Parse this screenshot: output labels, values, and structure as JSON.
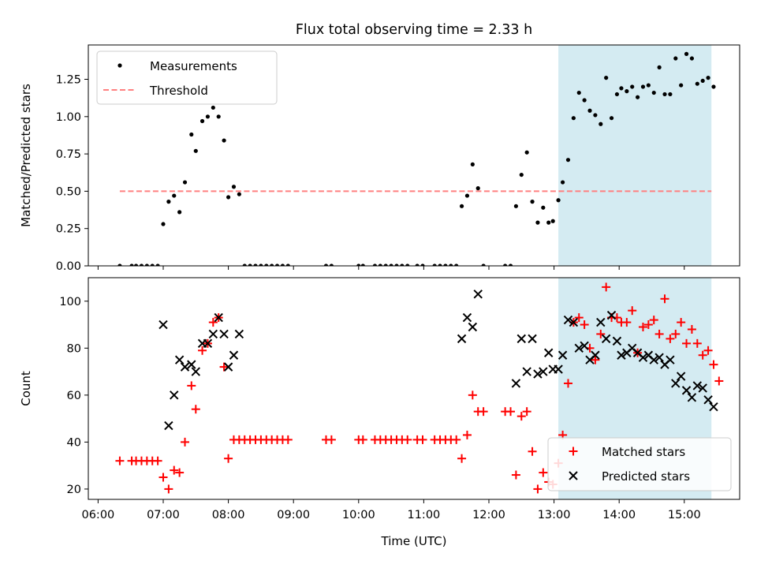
{
  "title": "Flux total observing time = 2.33 h",
  "chart_data": [
    {
      "type": "scatter",
      "ylabel": "Matched/Predicted stars",
      "xlim": [
        "05:51",
        "15:51"
      ],
      "ylim": [
        0,
        1.48
      ],
      "yticks": [
        "0.00",
        "0.25",
        "0.50",
        "0.75",
        "1.00",
        "1.25"
      ],
      "shaded_span": [
        "13:04",
        "15:25"
      ],
      "shaded_color": "#add8e6",
      "legend_position": "upper left",
      "threshold": {
        "name": "Threshold",
        "value": 0.5,
        "x_range": [
          "06:20",
          "15:25"
        ],
        "color": "#ff8080"
      },
      "series": [
        {
          "name": "Measurements",
          "marker": "dot",
          "color": "#000000",
          "points": [
            [
              "06:20",
              0
            ],
            [
              "06:31",
              0
            ],
            [
              "06:35",
              0
            ],
            [
              "06:40",
              0
            ],
            [
              "06:45",
              0
            ],
            [
              "06:50",
              0
            ],
            [
              "06:55",
              0
            ],
            [
              "07:00",
              0.28
            ],
            [
              "07:05",
              0.43
            ],
            [
              "07:10",
              0.47
            ],
            [
              "07:15",
              0.36
            ],
            [
              "07:20",
              0.56
            ],
            [
              "07:26",
              0.88
            ],
            [
              "07:30",
              0.77
            ],
            [
              "07:36",
              0.97
            ],
            [
              "07:41",
              1.0
            ],
            [
              "07:46",
              1.06
            ],
            [
              "07:51",
              1.0
            ],
            [
              "07:56",
              0.84
            ],
            [
              "08:00",
              0.46
            ],
            [
              "08:05",
              0.53
            ],
            [
              "08:10",
              0.48
            ],
            [
              "08:15",
              0
            ],
            [
              "08:20",
              0
            ],
            [
              "08:25",
              0
            ],
            [
              "08:30",
              0
            ],
            [
              "08:35",
              0
            ],
            [
              "08:40",
              0
            ],
            [
              "08:45",
              0
            ],
            [
              "08:50",
              0
            ],
            [
              "08:55",
              0
            ],
            [
              "09:30",
              0
            ],
            [
              "09:35",
              0
            ],
            [
              "10:00",
              0
            ],
            [
              "10:04",
              0
            ],
            [
              "10:15",
              0
            ],
            [
              "10:20",
              0
            ],
            [
              "10:25",
              0
            ],
            [
              "10:30",
              0
            ],
            [
              "10:35",
              0
            ],
            [
              "10:40",
              0
            ],
            [
              "10:45",
              0
            ],
            [
              "10:54",
              0
            ],
            [
              "10:59",
              0
            ],
            [
              "11:10",
              0
            ],
            [
              "11:15",
              0
            ],
            [
              "11:20",
              0
            ],
            [
              "11:25",
              0
            ],
            [
              "11:30",
              0
            ],
            [
              "11:35",
              0.4
            ],
            [
              "11:40",
              0.47
            ],
            [
              "11:45",
              0.68
            ],
            [
              "11:50",
              0.52
            ],
            [
              "11:55",
              0
            ],
            [
              "12:15",
              0
            ],
            [
              "12:20",
              0
            ],
            [
              "12:25",
              0.4
            ],
            [
              "12:30",
              0.61
            ],
            [
              "12:35",
              0.76
            ],
            [
              "12:40",
              0.43
            ],
            [
              "12:45",
              0.29
            ],
            [
              "12:50",
              0.39
            ],
            [
              "12:55",
              0.29
            ],
            [
              "12:59",
              0.3
            ],
            [
              "13:04",
              0.44
            ],
            [
              "13:08",
              0.56
            ],
            [
              "13:13",
              0.71
            ],
            [
              "13:18",
              0.99
            ],
            [
              "13:23",
              1.16
            ],
            [
              "13:28",
              1.11
            ],
            [
              "13:33",
              1.04
            ],
            [
              "13:38",
              1.01
            ],
            [
              "13:43",
              0.95
            ],
            [
              "13:48",
              1.26
            ],
            [
              "13:53",
              0.99
            ],
            [
              "13:58",
              1.15
            ],
            [
              "14:02",
              1.19
            ],
            [
              "14:07",
              1.17
            ],
            [
              "14:12",
              1.2
            ],
            [
              "14:17",
              1.13
            ],
            [
              "14:22",
              1.2
            ],
            [
              "14:27",
              1.21
            ],
            [
              "14:32",
              1.16
            ],
            [
              "14:37",
              1.33
            ],
            [
              "14:42",
              1.15
            ],
            [
              "14:47",
              1.15
            ],
            [
              "14:52",
              1.39
            ],
            [
              "14:57",
              1.21
            ],
            [
              "15:02",
              1.42
            ],
            [
              "15:07",
              1.39
            ],
            [
              "15:12",
              1.22
            ],
            [
              "15:17",
              1.24
            ],
            [
              "15:22",
              1.26
            ],
            [
              "15:27",
              1.2
            ]
          ]
        }
      ]
    },
    {
      "type": "scatter",
      "xlabel": "Time (UTC)",
      "ylabel": "Count",
      "xlim": [
        "05:51",
        "15:51"
      ],
      "ylim": [
        15.6,
        110
      ],
      "xticks": [
        "06:00",
        "07:00",
        "08:00",
        "09:00",
        "10:00",
        "11:00",
        "12:00",
        "13:00",
        "14:00",
        "15:00"
      ],
      "yticks": [
        "20",
        "40",
        "60",
        "80",
        "100"
      ],
      "shaded_span": [
        "13:04",
        "15:25"
      ],
      "shaded_color": "#add8e6",
      "legend_position": "lower right",
      "series": [
        {
          "name": "Matched stars",
          "marker": "+",
          "color": "#ff0000",
          "points": [
            [
              "06:20",
              32
            ],
            [
              "06:31",
              32
            ],
            [
              "06:35",
              32
            ],
            [
              "06:40",
              32
            ],
            [
              "06:45",
              32
            ],
            [
              "06:50",
              32
            ],
            [
              "06:55",
              32
            ],
            [
              "07:00",
              25
            ],
            [
              "07:05",
              20
            ],
            [
              "07:10",
              28
            ],
            [
              "07:15",
              27
            ],
            [
              "07:20",
              40
            ],
            [
              "07:26",
              64
            ],
            [
              "07:30",
              54
            ],
            [
              "07:36",
              79
            ],
            [
              "07:41",
              82
            ],
            [
              "07:46",
              91
            ],
            [
              "07:51",
              93
            ],
            [
              "07:56",
              72
            ],
            [
              "08:00",
              33
            ],
            [
              "08:05",
              41
            ],
            [
              "08:10",
              41
            ],
            [
              "08:15",
              41
            ],
            [
              "08:20",
              41
            ],
            [
              "08:25",
              41
            ],
            [
              "08:30",
              41
            ],
            [
              "08:35",
              41
            ],
            [
              "08:40",
              41
            ],
            [
              "08:45",
              41
            ],
            [
              "08:50",
              41
            ],
            [
              "08:55",
              41
            ],
            [
              "09:30",
              41
            ],
            [
              "09:35",
              41
            ],
            [
              "10:00",
              41
            ],
            [
              "10:04",
              41
            ],
            [
              "10:15",
              41
            ],
            [
              "10:20",
              41
            ],
            [
              "10:25",
              41
            ],
            [
              "10:30",
              41
            ],
            [
              "10:35",
              41
            ],
            [
              "10:40",
              41
            ],
            [
              "10:45",
              41
            ],
            [
              "10:54",
              41
            ],
            [
              "10:59",
              41
            ],
            [
              "11:10",
              41
            ],
            [
              "11:15",
              41
            ],
            [
              "11:20",
              41
            ],
            [
              "11:25",
              41
            ],
            [
              "11:30",
              41
            ],
            [
              "11:35",
              33
            ],
            [
              "11:40",
              43
            ],
            [
              "11:45",
              60
            ],
            [
              "11:50",
              53
            ],
            [
              "11:55",
              53
            ],
            [
              "12:15",
              53
            ],
            [
              "12:20",
              53
            ],
            [
              "12:25",
              26
            ],
            [
              "12:30",
              51
            ],
            [
              "12:35",
              53
            ],
            [
              "12:40",
              36
            ],
            [
              "12:45",
              20
            ],
            [
              "12:50",
              27
            ],
            [
              "12:55",
              23
            ],
            [
              "12:59",
              22
            ],
            [
              "13:04",
              31
            ],
            [
              "13:08",
              43
            ],
            [
              "13:13",
              65
            ],
            [
              "13:18",
              91
            ],
            [
              "13:23",
              93
            ],
            [
              "13:28",
              90
            ],
            [
              "13:33",
              80
            ],
            [
              "13:38",
              75
            ],
            [
              "13:43",
              86
            ],
            [
              "13:48",
              106
            ],
            [
              "13:53",
              93
            ],
            [
              "13:58",
              93
            ],
            [
              "14:02",
              91
            ],
            [
              "14:07",
              91
            ],
            [
              "14:12",
              96
            ],
            [
              "14:17",
              78
            ],
            [
              "14:22",
              89
            ],
            [
              "14:27",
              90
            ],
            [
              "14:32",
              92
            ],
            [
              "14:37",
              86
            ],
            [
              "14:42",
              101
            ],
            [
              "14:47",
              84
            ],
            [
              "14:52",
              86
            ],
            [
              "14:57",
              91
            ],
            [
              "15:02",
              82
            ],
            [
              "15:07",
              88
            ],
            [
              "15:12",
              82
            ],
            [
              "15:17",
              77
            ],
            [
              "15:22",
              79
            ],
            [
              "15:27",
              73
            ],
            [
              "15:32",
              66
            ]
          ]
        },
        {
          "name": "Predicted stars",
          "marker": "x",
          "color": "#000000",
          "points": [
            [
              "07:00",
              90
            ],
            [
              "07:05",
              47
            ],
            [
              "07:10",
              60
            ],
            [
              "07:15",
              75
            ],
            [
              "07:20",
              72
            ],
            [
              "07:26",
              73
            ],
            [
              "07:30",
              70
            ],
            [
              "07:36",
              82
            ],
            [
              "07:41",
              82
            ],
            [
              "07:46",
              86
            ],
            [
              "07:51",
              93
            ],
            [
              "07:56",
              86
            ],
            [
              "08:00",
              72
            ],
            [
              "08:05",
              77
            ],
            [
              "08:10",
              86
            ],
            [
              "11:35",
              84
            ],
            [
              "11:40",
              93
            ],
            [
              "11:45",
              89
            ],
            [
              "11:50",
              103
            ],
            [
              "12:25",
              65
            ],
            [
              "12:30",
              84
            ],
            [
              "12:35",
              70
            ],
            [
              "12:40",
              84
            ],
            [
              "12:45",
              69
            ],
            [
              "12:50",
              70
            ],
            [
              "12:55",
              78
            ],
            [
              "12:59",
              71
            ],
            [
              "13:04",
              71
            ],
            [
              "13:08",
              77
            ],
            [
              "13:13",
              92
            ],
            [
              "13:18",
              91
            ],
            [
              "13:23",
              80
            ],
            [
              "13:28",
              81
            ],
            [
              "13:33",
              75
            ],
            [
              "13:38",
              77
            ],
            [
              "13:43",
              91
            ],
            [
              "13:48",
              84
            ],
            [
              "13:53",
              94
            ],
            [
              "13:58",
              83
            ],
            [
              "14:02",
              77
            ],
            [
              "14:07",
              78
            ],
            [
              "14:12",
              80
            ],
            [
              "14:17",
              78
            ],
            [
              "14:22",
              76
            ],
            [
              "14:27",
              77
            ],
            [
              "14:32",
              75
            ],
            [
              "14:37",
              76
            ],
            [
              "14:42",
              73
            ],
            [
              "14:47",
              75
            ],
            [
              "14:52",
              65
            ],
            [
              "14:57",
              68
            ],
            [
              "15:02",
              62
            ],
            [
              "15:07",
              59
            ],
            [
              "15:12",
              64
            ],
            [
              "15:17",
              63
            ],
            [
              "15:22",
              58
            ],
            [
              "15:27",
              55
            ]
          ]
        }
      ]
    }
  ]
}
